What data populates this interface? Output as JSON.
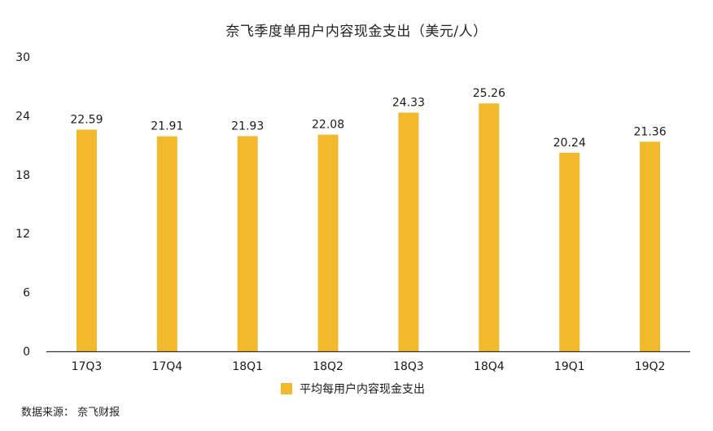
{
  "title": "奈飞季度单用户内容现金支出（美元/人）",
  "source": "数据来源：  奈飞财报",
  "colors": {
    "bar": "#F3B92C",
    "axis": "#333333",
    "text": "#1a1a1a"
  },
  "chart_data": {
    "type": "bar",
    "categories": [
      "17Q3",
      "17Q4",
      "18Q1",
      "18Q2",
      "18Q3",
      "18Q4",
      "19Q1",
      "19Q2"
    ],
    "series": [
      {
        "name": "平均每用户内容现金支出",
        "values": [
          22.59,
          21.91,
          21.93,
          22.08,
          24.33,
          25.26,
          20.24,
          21.36
        ]
      }
    ],
    "ylim": [
      0,
      30
    ],
    "yticks": [
      0,
      6,
      12,
      18,
      24,
      30
    ],
    "grid": false,
    "legend_position": "bottom-center",
    "data_labels": [
      "22.59",
      "21.91",
      "21.93",
      "22.08",
      "24.33",
      "25.26",
      "20.24",
      "21.36"
    ]
  }
}
